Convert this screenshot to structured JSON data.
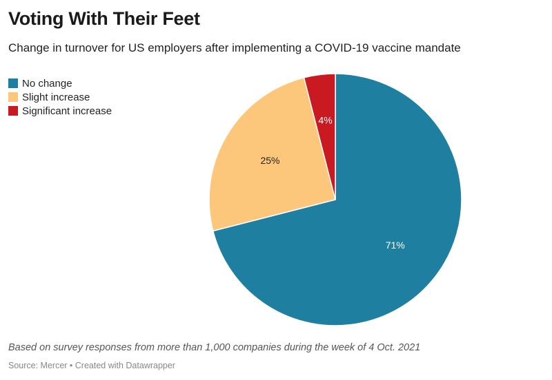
{
  "chart_data": {
    "type": "pie",
    "title": "Voting With Their Feet",
    "subtitle": "Change in turnover for US employers after implementing a COVID-19 vaccine mandate",
    "categories": [
      "No change",
      "Slight increase",
      "Significant increase"
    ],
    "values": [
      71,
      25,
      4
    ],
    "labels": [
      "71%",
      "25%",
      "4%"
    ],
    "colors": [
      "#1f7fa0",
      "#fdc77b",
      "#c91a22"
    ],
    "label_colors": [
      "#ffffff",
      "#222222",
      "#ffffff"
    ],
    "legend_position": "top-left",
    "note": "Based on survey responses from more than 1,000 companies during the week of 4 Oct. 2021",
    "source": "Source: Mercer • Created with Datawrapper"
  }
}
